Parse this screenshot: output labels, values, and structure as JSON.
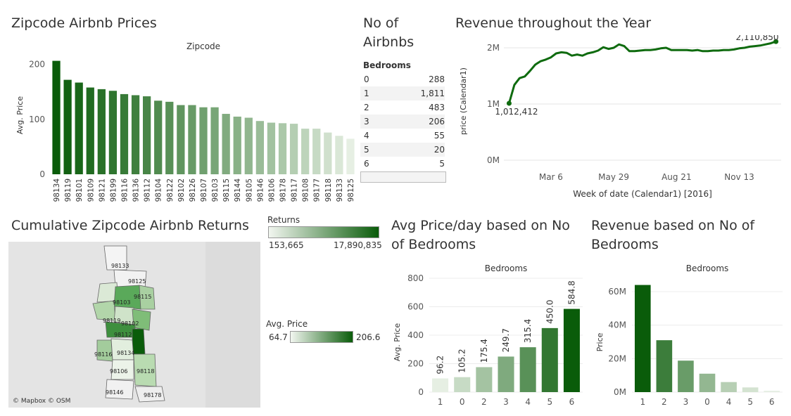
{
  "colors": {
    "dark": "#0a5c0a",
    "mid": "#4aa34a",
    "light": "#e6efe3",
    "line": "#0f6b0f"
  },
  "titles": {
    "zip_prices": "Zipcode Airbnb Prices",
    "no_airbnbs_line1": "No of",
    "no_airbnbs_line2": "Airbnbs",
    "revenue_year": "Revenue throughout the Year",
    "cumulative": "Cumulative Zipcode Airbnb Returns",
    "avg_price_day_line1": "Avg Price/day based on No",
    "avg_price_day_line2": "of Bedrooms",
    "rev_bedrooms_line1": "Revenue based on No of",
    "rev_bedrooms_line2": "Bedrooms"
  },
  "table": {
    "header": "Bedrooms",
    "rows": [
      {
        "k": "0",
        "v": "288"
      },
      {
        "k": "1",
        "v": "1,811"
      },
      {
        "k": "2",
        "v": "483"
      },
      {
        "k": "3",
        "v": "206"
      },
      {
        "k": "4",
        "v": "55"
      },
      {
        "k": "5",
        "v": "20"
      },
      {
        "k": "6",
        "v": "5"
      }
    ]
  },
  "legend_returns": {
    "title": "Returns",
    "min": "153,665",
    "max": "17,890,835"
  },
  "legend_price": {
    "title": "Avg. Price",
    "min": "64.7",
    "max": "206.6"
  },
  "map": {
    "attribution": "© Mapbox © OSM",
    "labels": [
      "98133",
      "98125",
      "98115",
      "98103",
      "98119",
      "98102",
      "98112",
      "98116",
      "98134",
      "98106",
      "98118",
      "98146",
      "98178"
    ]
  },
  "chart_data": [
    {
      "type": "bar",
      "header": "Zipcode",
      "ylabel": "Avg. Price",
      "ylim": [
        0,
        215
      ],
      "yticks": [
        0,
        100,
        200
      ],
      "categories": [
        "98134",
        "98119",
        "98101",
        "98109",
        "98121",
        "98199",
        "98116",
        "98136",
        "98112",
        "98104",
        "98122",
        "98102",
        "98126",
        "98107",
        "98103",
        "98115",
        "98144",
        "98105",
        "98146",
        "98106",
        "98178",
        "98117",
        "98108",
        "98177",
        "98118",
        "98133",
        "98125"
      ],
      "values": [
        206.6,
        172,
        167,
        158,
        155,
        152,
        146,
        144,
        142,
        134,
        132,
        126,
        126,
        122,
        122,
        110,
        105,
        103,
        97,
        94,
        93,
        92,
        83,
        83,
        76,
        70,
        64.7
      ]
    },
    {
      "type": "line",
      "ylabel": "price (Calendar1)",
      "xlabel": "Week of date (Calendar1) [2016]",
      "xtick_labels": [
        "Mar 6",
        "May 29",
        "Aug 21",
        "Nov 13"
      ],
      "xtick_weeks": [
        9,
        21,
        33,
        45
      ],
      "yticks": [
        {
          "v": 0,
          "label": "0M"
        },
        {
          "v": 1000000,
          "label": "1M"
        },
        {
          "v": 2000000,
          "label": "2M"
        }
      ],
      "ylim": [
        0,
        2100000
      ],
      "start_label": "1,012,412",
      "end_label": "2,110,850",
      "x_weeks": [
        1,
        2,
        3,
        4,
        5,
        6,
        7,
        8,
        9,
        10,
        11,
        12,
        13,
        14,
        15,
        16,
        17,
        18,
        19,
        20,
        21,
        22,
        23,
        24,
        25,
        26,
        27,
        28,
        29,
        30,
        31,
        32,
        33,
        34,
        35,
        36,
        37,
        38,
        39,
        40,
        41,
        42,
        43,
        44,
        45,
        46,
        47,
        48,
        49,
        50,
        51,
        52
      ],
      "y": [
        1012412,
        1340000,
        1460000,
        1490000,
        1590000,
        1700000,
        1760000,
        1790000,
        1830000,
        1900000,
        1920000,
        1910000,
        1860000,
        1880000,
        1860000,
        1900000,
        1920000,
        1950000,
        2010000,
        1980000,
        2000000,
        2060000,
        2030000,
        1940000,
        1940000,
        1950000,
        1960000,
        1960000,
        1970000,
        1990000,
        2000000,
        1960000,
        1960000,
        1960000,
        1960000,
        1950000,
        1960000,
        1940000,
        1940000,
        1950000,
        1950000,
        1960000,
        1960000,
        1970000,
        1990000,
        2000000,
        2020000,
        2030000,
        2040000,
        2060000,
        2080000,
        2110850
      ]
    },
    {
      "type": "bar",
      "header": "Bedrooms",
      "ylabel": "Avg. Price",
      "ylim": [
        0,
        800
      ],
      "yticks": [
        0,
        200,
        400,
        600,
        800
      ],
      "categories": [
        "1",
        "0",
        "2",
        "3",
        "4",
        "5",
        "6"
      ],
      "values": [
        96.2,
        105.2,
        175.4,
        249.7,
        315.4,
        450.0,
        584.8
      ],
      "labels": [
        "96.2",
        "105.2",
        "175.4",
        "249.7",
        "315.4",
        "450.0",
        "584.8"
      ]
    },
    {
      "type": "bar",
      "header": "Bedrooms",
      "ylabel": "Price",
      "ylim": [
        0,
        68000000
      ],
      "yticks": [
        {
          "v": 0,
          "label": "0M"
        },
        {
          "v": 20000000,
          "label": "20M"
        },
        {
          "v": 40000000,
          "label": "40M"
        },
        {
          "v": 60000000,
          "label": "60M"
        }
      ],
      "categories": [
        "1",
        "2",
        "3",
        "0",
        "4",
        "5",
        "6"
      ],
      "values": [
        64000000,
        31000000,
        18800000,
        11000000,
        6000000,
        2800000,
        800000
      ]
    }
  ]
}
